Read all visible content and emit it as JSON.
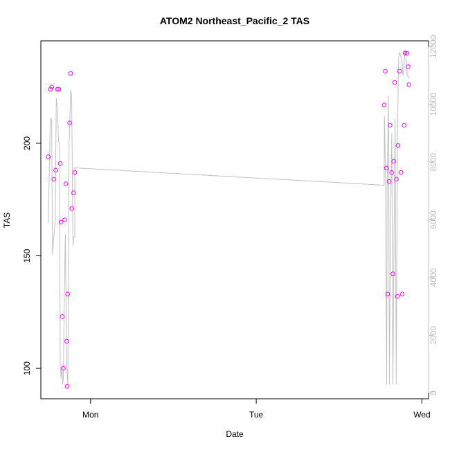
{
  "chart_data": {
    "type": "scatter",
    "title": "ATOM2 Northeast_Pacific_2 TAS",
    "xlabel": "Date",
    "ylabel": "TAS",
    "x_tick_labels": [
      "Mon",
      "Tue",
      "Wed"
    ],
    "x_tick_values": [
      1.0,
      2.0,
      3.0
    ],
    "xlim": [
      0.7,
      3.04
    ],
    "ylim": [
      86.5,
      245.5
    ],
    "y_ticks": [
      100,
      150,
      200
    ],
    "y2lim": [
      -200,
      12200
    ],
    "y2_ticks": [
      0,
      2000,
      4000,
      6000,
      8000,
      10000,
      12000
    ],
    "grid": false,
    "colors": {
      "points": "#ff00ff",
      "line": "#c0c0c0",
      "right_axis": "#bdbdbd"
    },
    "series": [
      {
        "type": "scatter",
        "axis": "left",
        "x": [
          0.745,
          0.758,
          0.766,
          0.778,
          0.79,
          0.8,
          0.808,
          0.817,
          0.822,
          0.829,
          0.836,
          0.844,
          0.851,
          0.856,
          0.859,
          0.862,
          0.874,
          0.88,
          0.887,
          0.898,
          2.772,
          2.779,
          2.786,
          2.794,
          2.802,
          2.808,
          2.817,
          2.825,
          2.83,
          2.836,
          2.846,
          2.852,
          2.856,
          2.865,
          2.874,
          2.881,
          2.893,
          2.899,
          2.91
        ],
        "y": [
          194,
          224,
          225,
          184,
          188,
          224,
          224,
          191,
          165,
          123,
          100,
          166,
          182,
          112,
          92,
          133,
          209,
          231,
          171,
          178,
          217,
          232,
          189,
          133,
          183,
          208,
          187,
          142,
          192,
          227,
          184,
          132,
          199,
          232,
          187,
          133,
          208,
          240,
          240
        ]
      },
      {
        "type": "scatter",
        "axis": "left",
        "x": [
          0.905,
          2.917,
          2.922
        ],
        "y": [
          187,
          234,
          226
        ]
      },
      {
        "type": "line",
        "axis": "right",
        "x": [
          0.745,
          0.757,
          0.765,
          0.77,
          0.787,
          0.793,
          0.8,
          0.807,
          0.813,
          0.817,
          0.822,
          0.828,
          0.831,
          0.836,
          0.842,
          0.848,
          0.856,
          0.86,
          0.863,
          0.87,
          0.88,
          0.886,
          0.894,
          0.898,
          0.905,
          0.905,
          2.772,
          2.774,
          2.78,
          2.787,
          2.79,
          2.798,
          2.804,
          2.81,
          2.818,
          2.825,
          2.832,
          2.838,
          2.845,
          2.853,
          2.859,
          2.864,
          2.87,
          2.88,
          2.886,
          2.891,
          2.898,
          2.903,
          2.911,
          2.925
        ],
        "y": [
          5900,
          9500,
          9500,
          4800,
          6000,
          10200,
          9800,
          8700,
          8600,
          1000,
          500,
          1000,
          300,
          500,
          3500,
          5500,
          1000,
          500,
          300,
          8500,
          10500,
          10300,
          5100,
          5400,
          5400,
          7800,
          7200,
          9600,
          7500,
          300,
          7000,
          10300,
          300,
          6000,
          9000,
          300,
          5500,
          9500,
          300,
          9000,
          11600,
          11800,
          11700,
          11500,
          11000,
          11300,
          11900,
          11800,
          11000,
          10900
        ]
      }
    ]
  }
}
